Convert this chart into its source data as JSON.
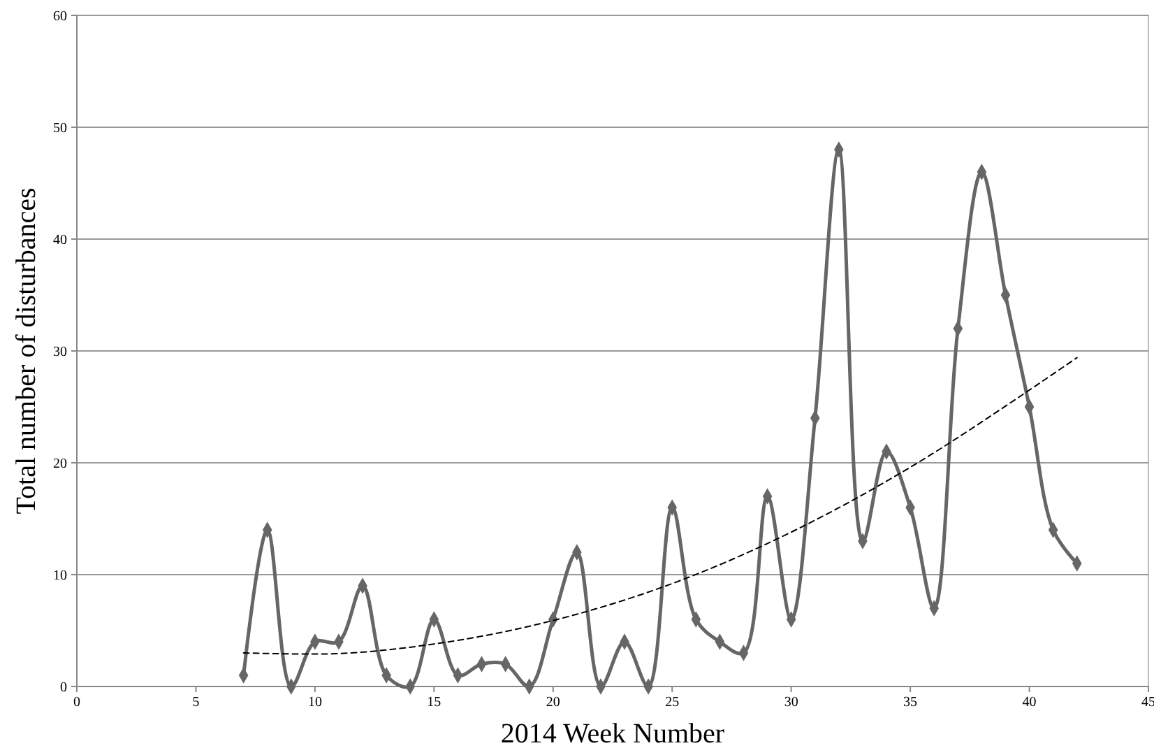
{
  "chart_data": {
    "type": "line",
    "xlabel": "2014 Week Number",
    "ylabel": "Total number of disturbances",
    "x": [
      7,
      8,
      9,
      10,
      11,
      12,
      13,
      14,
      15,
      16,
      17,
      18,
      19,
      20,
      21,
      22,
      23,
      24,
      25,
      26,
      27,
      28,
      29,
      30,
      31,
      32,
      33,
      34,
      35,
      36,
      37,
      38,
      39,
      40,
      41,
      42
    ],
    "series": [
      {
        "color": "#666666",
        "values": [
          1,
          14,
          0,
          4,
          4,
          9,
          1,
          0,
          6,
          1,
          2,
          2,
          0,
          6,
          12,
          0,
          4,
          0,
          16,
          6,
          4,
          3,
          17,
          6,
          24,
          48,
          13,
          21,
          16,
          7,
          32,
          46,
          35,
          25,
          14,
          11
        ]
      },
      {
        "type": "line",
        "color": "#000000",
        "marker": "none",
        "line_style": "dashed",
        "x": [
          7,
          10,
          15,
          20,
          25,
          30,
          35,
          40,
          42
        ],
        "values": [
          3,
          2.9,
          3.8,
          5.9,
          9.2,
          13.8,
          19.6,
          26.5,
          29.4
        ]
      }
    ],
    "xlim": [
      0,
      45
    ],
    "xticks": [
      0,
      5,
      10,
      15,
      20,
      25,
      30,
      35,
      40,
      45
    ],
    "ylim": [
      0,
      60
    ],
    "yticks": [
      0,
      10,
      20,
      30,
      40,
      50,
      60
    ],
    "grid": "y",
    "marker": "diamond",
    "line_style": "solid"
  }
}
